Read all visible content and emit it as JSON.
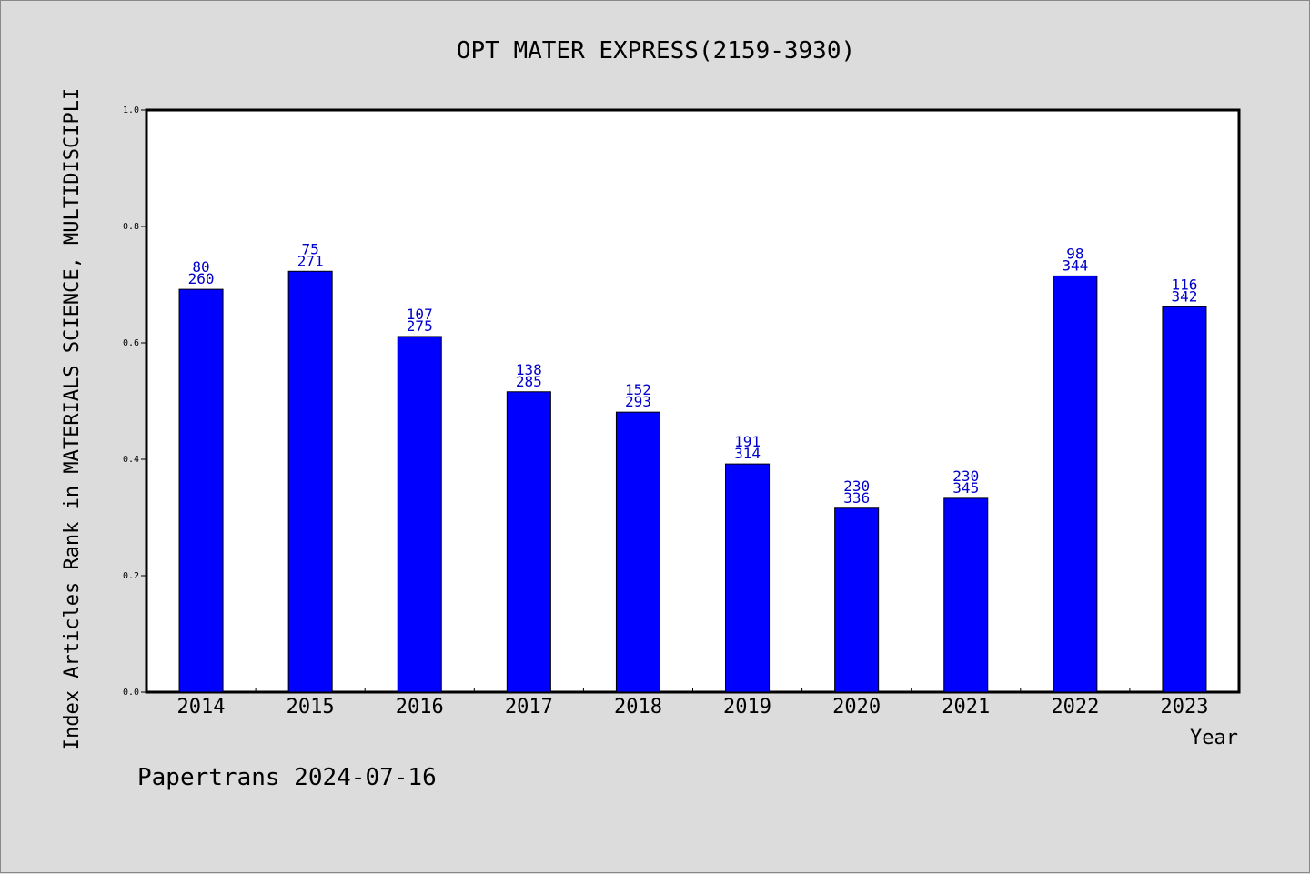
{
  "chart_data": {
    "type": "bar",
    "title": "OPT MATER EXPRESS(2159-3930)",
    "xlabel": "Year",
    "ylabel": "Index Articles Rank in MATERIALS SCIENCE, MULTIDISCIPLI",
    "ylim": [
      0,
      1.0
    ],
    "yticks": [
      "0.0",
      "0.2",
      "0.4",
      "0.6",
      "0.8",
      "1.0"
    ],
    "categories": [
      "2014",
      "2015",
      "2016",
      "2017",
      "2018",
      "2019",
      "2020",
      "2021",
      "2022",
      "2023"
    ],
    "values": [
      0.692,
      0.723,
      0.611,
      0.516,
      0.481,
      0.392,
      0.316,
      0.333,
      0.715,
      0.662
    ],
    "ranks": [
      "80",
      "75",
      "107",
      "138",
      "152",
      "191",
      "230",
      "230",
      "98",
      "116"
    ],
    "totals": [
      "260",
      "271",
      "275",
      "285",
      "293",
      "314",
      "336",
      "345",
      "344",
      "342"
    ],
    "bar_color": "#0000ff",
    "label_color": "#0000cc",
    "grid": false,
    "legend": "none"
  },
  "footer": "Papertrans 2024-07-16"
}
